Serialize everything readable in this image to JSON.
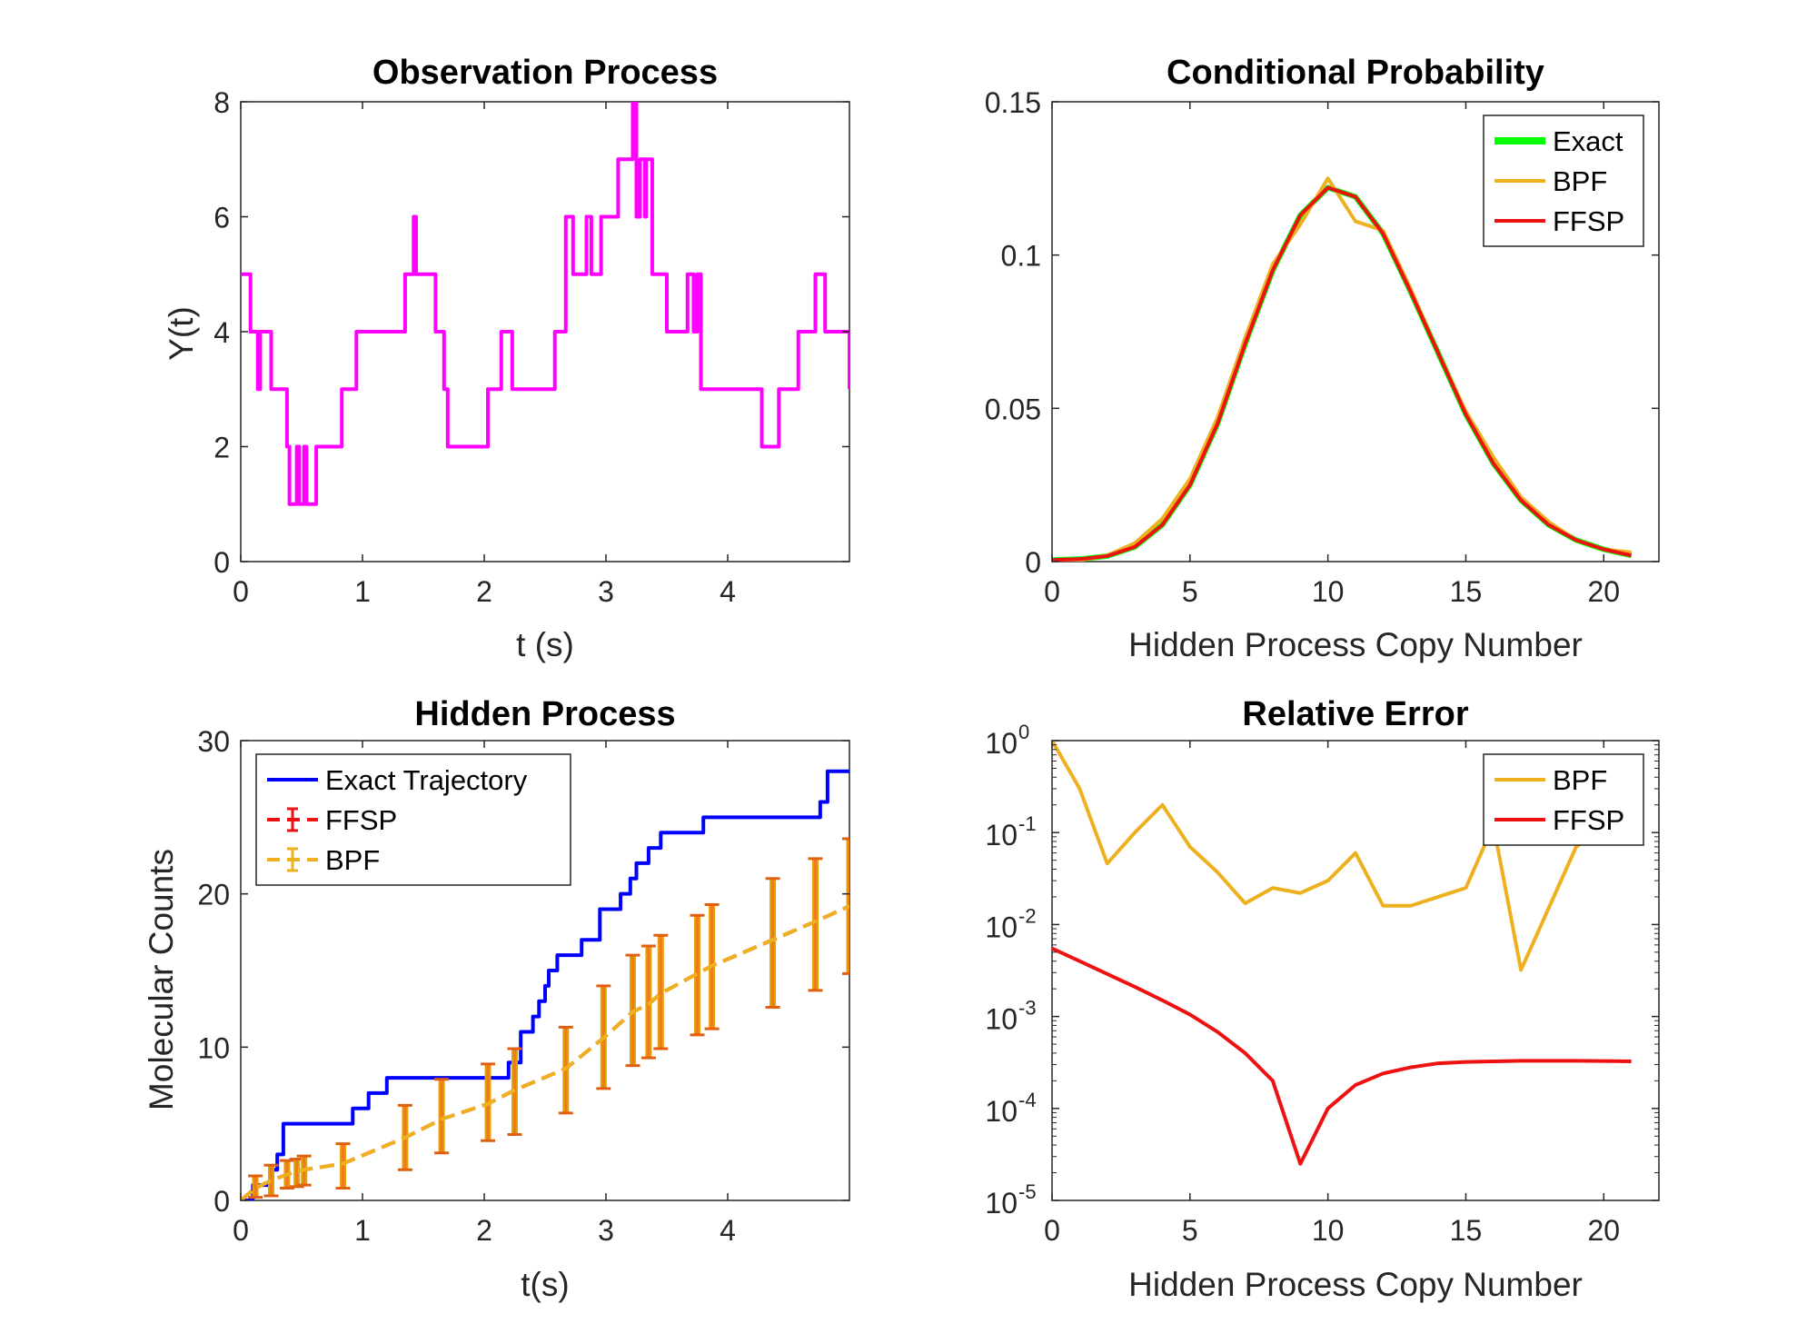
{
  "colors": {
    "magenta": "#ff00ff",
    "green": "#00ff00",
    "orange": "#edb120",
    "red": "#ee1111",
    "blue": "#0000ff",
    "errorbar_fill": "#f07a20"
  },
  "chart_data": [
    {
      "type": "line",
      "title": "Observation Process",
      "xlabel": "t (s)",
      "ylabel": "Y(t)",
      "xlim": [
        0,
        5
      ],
      "ylim": [
        0,
        8
      ],
      "xticks": [
        0,
        1,
        2,
        3,
        4
      ],
      "yticks": [
        0,
        2,
        4,
        6,
        8
      ],
      "series": [
        {
          "color": "magenta",
          "step": true,
          "x": [
            0,
            0.08,
            0.14,
            0.16,
            0.25,
            0.38,
            0.4,
            0.46,
            0.48,
            0.52,
            0.54,
            0.62,
            0.83,
            0.95,
            1.05,
            1.35,
            1.42,
            1.44,
            1.48,
            1.6,
            1.67,
            1.7,
            2.03,
            2.14,
            2.23,
            2.33,
            2.58,
            2.67,
            2.73,
            2.84,
            2.88,
            2.96,
            3.1,
            3.22,
            3.25,
            3.28,
            3.32,
            3.33,
            3.38,
            3.5,
            3.58,
            3.67,
            3.72,
            3.75,
            3.78,
            3.84,
            4.28,
            4.42,
            4.58,
            4.72,
            4.8,
            4.88,
            5.0
          ],
          "y": [
            5,
            4,
            3,
            4,
            3,
            2,
            1,
            2,
            1,
            2,
            1,
            2,
            3,
            4,
            4,
            5,
            6,
            5,
            5,
            4,
            3,
            2,
            3,
            4,
            3,
            3,
            4,
            6,
            5,
            6,
            5,
            6,
            7,
            8,
            6,
            7,
            6,
            7,
            5,
            4,
            4,
            5,
            4,
            5,
            3,
            3,
            2,
            3,
            4,
            5,
            4,
            4,
            3
          ]
        }
      ]
    },
    {
      "type": "line",
      "title": "Conditional Probability",
      "xlabel": "Hidden Process Copy Number",
      "ylabel": "",
      "xlim": [
        0,
        22
      ],
      "ylim": [
        0,
        0.15
      ],
      "xticks": [
        0,
        5,
        10,
        15,
        20
      ],
      "yticks": [
        0,
        0.05,
        0.1,
        0.15
      ],
      "ytick_labels": [
        "0",
        "0.05",
        "0.1",
        "0.15"
      ],
      "legend": "top-right",
      "categories": [
        0,
        1,
        2,
        3,
        4,
        5,
        6,
        7,
        8,
        9,
        10,
        11,
        12,
        13,
        14,
        15,
        16,
        17,
        18,
        19,
        20,
        21
      ],
      "series": [
        {
          "name": "Exact",
          "color": "green",
          "width": 6,
          "values": [
            0.0005,
            0.0008,
            0.0018,
            0.0048,
            0.012,
            0.025,
            0.045,
            0.071,
            0.095,
            0.113,
            0.122,
            0.119,
            0.107,
            0.088,
            0.068,
            0.048,
            0.032,
            0.02,
            0.012,
            0.007,
            0.004,
            0.002
          ]
        },
        {
          "name": "BPF",
          "color": "orange",
          "width": 4,
          "values": [
            0.0002,
            0.0004,
            0.002,
            0.006,
            0.014,
            0.027,
            0.047,
            0.073,
            0.097,
            0.11,
            0.125,
            0.111,
            0.108,
            0.089,
            0.068,
            0.049,
            0.034,
            0.021,
            0.013,
            0.007,
            0.004,
            0.003
          ]
        },
        {
          "name": "FFSP",
          "color": "red",
          "width": 4,
          "values": [
            0.0005,
            0.0008,
            0.0018,
            0.0048,
            0.012,
            0.025,
            0.045,
            0.071,
            0.095,
            0.113,
            0.122,
            0.119,
            0.107,
            0.088,
            0.068,
            0.048,
            0.032,
            0.02,
            0.012,
            0.007,
            0.004,
            0.002
          ]
        }
      ]
    },
    {
      "type": "line",
      "title": "Hidden Process",
      "xlabel": "t(s)",
      "ylabel": "Molecular Counts",
      "xlim": [
        0,
        5
      ],
      "ylim": [
        0,
        30
      ],
      "xticks": [
        0,
        1,
        2,
        3,
        4
      ],
      "yticks": [
        0,
        10,
        20,
        30
      ],
      "legend": "top-left",
      "series": [
        {
          "name": "Exact Trajectory",
          "color": "blue",
          "step": true,
          "x": [
            0,
            0.1,
            0.25,
            0.3,
            0.35,
            0.92,
            1.05,
            1.2,
            2.2,
            2.3,
            2.4,
            2.45,
            2.5,
            2.53,
            2.56,
            2.6,
            2.7,
            2.8,
            2.95,
            3.12,
            3.2,
            3.25,
            3.35,
            3.45,
            3.58,
            3.65,
            3.72,
            3.8,
            3.95,
            4.1,
            4.2,
            4.3,
            4.4,
            4.5,
            4.6,
            4.7,
            4.76,
            4.82,
            5.0
          ],
          "y": [
            0,
            1,
            2,
            3,
            5,
            6,
            7,
            8,
            9,
            11,
            12,
            13,
            14,
            15,
            15,
            16,
            16,
            17,
            19,
            20,
            21,
            22,
            23,
            24,
            24,
            24,
            24,
            25,
            25,
            25,
            25,
            25,
            25,
            25,
            25,
            25,
            26,
            28,
            28
          ]
        },
        {
          "name": "FFSP",
          "color": "red",
          "dashed": true,
          "x": [
            0,
            0.12,
            0.25,
            0.38,
            0.46,
            0.52,
            0.84,
            1.35,
            1.65,
            2.03,
            2.25,
            2.67,
            2.98,
            3.22,
            3.35,
            3.45,
            3.75,
            3.87,
            4.37,
            4.72,
            5.0
          ],
          "values": [
            0,
            0.8,
            1.3,
            1.7,
            1.9,
            2.0,
            2.4,
            4.1,
            5.3,
            6.3,
            7.2,
            8.6,
            10.6,
            12.3,
            12.8,
            13.5,
            14.8,
            15.3,
            17.0,
            18.2,
            19.2
          ]
        },
        {
          "name": "BPF",
          "color": "orange",
          "dashed": true,
          "x": [
            0,
            0.12,
            0.25,
            0.38,
            0.46,
            0.52,
            0.84,
            1.35,
            1.65,
            2.03,
            2.25,
            2.67,
            2.98,
            3.22,
            3.35,
            3.45,
            3.75,
            3.87,
            4.37,
            4.72,
            5.0
          ],
          "values": [
            0,
            0.8,
            1.3,
            1.7,
            1.9,
            2.0,
            2.4,
            4.1,
            5.3,
            6.3,
            7.2,
            8.6,
            10.6,
            12.3,
            12.8,
            13.5,
            14.8,
            15.3,
            17.0,
            18.2,
            19.2
          ],
          "error_low": [
            0,
            0.2,
            0.3,
            0.8,
            0.9,
            1.0,
            0.8,
            2.0,
            3.1,
            3.9,
            4.3,
            5.7,
            7.3,
            8.8,
            9.3,
            9.9,
            10.8,
            11.2,
            12.6,
            13.7,
            14.8
          ],
          "error_high": [
            0,
            1.6,
            2.3,
            2.6,
            2.7,
            2.9,
            3.7,
            6.2,
            7.9,
            8.9,
            9.9,
            11.3,
            14.0,
            16.0,
            16.6,
            17.3,
            18.6,
            19.3,
            21.0,
            22.3,
            23.6
          ]
        }
      ]
    },
    {
      "type": "line",
      "title": "Relative Error",
      "xlabel": "Hidden Process Copy Number",
      "ylabel": "",
      "xlim": [
        0,
        22
      ],
      "ylim": [
        1e-05,
        1
      ],
      "yscale": "log",
      "xticks": [
        0,
        5,
        10,
        15,
        20
      ],
      "yticks": [
        1e-05,
        0.0001,
        0.001,
        0.01,
        0.1,
        1
      ],
      "ytick_exponents": [
        "-5",
        "-4",
        "-3",
        "-2",
        "-1",
        "0"
      ],
      "ytick_base": "10",
      "legend": "top-right",
      "categories": [
        0,
        1,
        2,
        3,
        4,
        5,
        6,
        7,
        8,
        9,
        10,
        11,
        12,
        13,
        14,
        15,
        16,
        17,
        18,
        19,
        20,
        21
      ],
      "series": [
        {
          "name": "BPF",
          "color": "orange",
          "values": [
            1.0,
            0.3,
            0.046,
            0.1,
            0.2,
            0.07,
            0.037,
            0.017,
            0.025,
            0.022,
            0.03,
            0.06,
            0.016,
            0.016,
            0.02,
            0.025,
            0.12,
            0.0032,
            0.015,
            0.07,
            0.11,
            0.13
          ]
        },
        {
          "name": "FFSP",
          "color": "red",
          "values": [
            0.0055,
            0.004,
            0.0029,
            0.0021,
            0.0015,
            0.00105,
            0.00068,
            0.0004,
            0.0002,
            2.5e-05,
            0.0001,
            0.00018,
            0.00024,
            0.00028,
            0.00031,
            0.00032,
            0.000325,
            0.00033,
            0.00033,
            0.00033,
            0.000328,
            0.000325
          ]
        }
      ]
    }
  ]
}
